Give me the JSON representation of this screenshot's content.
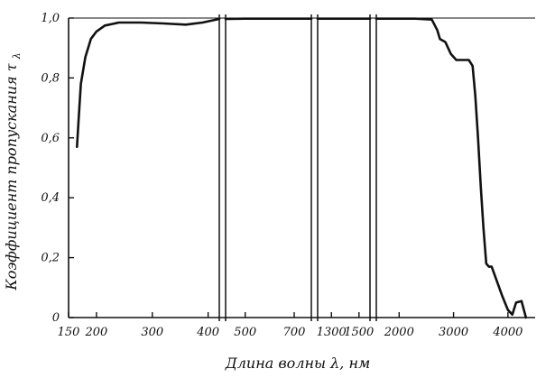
{
  "chart_data": {
    "type": "line",
    "title": "",
    "xlabel": "Длина волны λ, нм",
    "ylabel": "Коэффициент пропускания τ",
    "ylabel_subscript": "λ",
    "ylim": [
      0,
      1.0
    ],
    "y_ticks": [
      "0",
      "0,2",
      "0,4",
      "0,6",
      "0,8",
      "1,0"
    ],
    "y_tick_values": [
      0,
      0.2,
      0.4,
      0.6,
      0.8,
      1.0
    ],
    "x_axis_broken": true,
    "line_color": "#111111",
    "segments": [
      {
        "range": [
          150,
          420
        ],
        "ticks": [
          {
            "value": 150,
            "label": "150"
          },
          {
            "value": 200,
            "label": "200"
          },
          {
            "value": 300,
            "label": "300"
          },
          {
            "value": 400,
            "label": "400"
          }
        ],
        "points": [
          [
            165,
            0.57
          ],
          [
            168,
            0.66
          ],
          [
            172,
            0.78
          ],
          [
            180,
            0.87
          ],
          [
            190,
            0.93
          ],
          [
            200,
            0.955
          ],
          [
            215,
            0.975
          ],
          [
            240,
            0.985
          ],
          [
            280,
            0.985
          ],
          [
            320,
            0.982
          ],
          [
            360,
            0.978
          ],
          [
            390,
            0.985
          ],
          [
            420,
            0.997
          ]
        ]
      },
      {
        "range": [
          420,
          770
        ],
        "ticks": [
          {
            "value": 500,
            "label": "500"
          },
          {
            "value": 700,
            "label": "700"
          }
        ],
        "points": [
          [
            420,
            0.997
          ],
          [
            500,
            0.998
          ],
          [
            600,
            0.998
          ],
          [
            700,
            0.998
          ],
          [
            770,
            0.998
          ]
        ]
      },
      {
        "range": [
          1200,
          1580
        ],
        "ticks": [
          {
            "value": 1300,
            "label": "1300"
          },
          {
            "value": 1500,
            "label": "1500"
          }
        ],
        "points": [
          [
            1200,
            0.998
          ],
          [
            1300,
            0.998
          ],
          [
            1400,
            0.998
          ],
          [
            1500,
            0.998
          ],
          [
            1580,
            0.998
          ]
        ]
      },
      {
        "range": [
          1580,
          4500
        ],
        "ticks": [
          {
            "value": 2000,
            "label": "2000"
          },
          {
            "value": 3000,
            "label": "3000"
          },
          {
            "value": 4000,
            "label": "4000"
          }
        ],
        "points": [
          [
            1580,
            0.998
          ],
          [
            2000,
            0.998
          ],
          [
            2300,
            0.998
          ],
          [
            2600,
            0.995
          ],
          [
            2700,
            0.96
          ],
          [
            2750,
            0.93
          ],
          [
            2850,
            0.92
          ],
          [
            2950,
            0.88
          ],
          [
            3050,
            0.86
          ],
          [
            3150,
            0.86
          ],
          [
            3280,
            0.86
          ],
          [
            3350,
            0.84
          ],
          [
            3400,
            0.74
          ],
          [
            3450,
            0.6
          ],
          [
            3500,
            0.44
          ],
          [
            3550,
            0.3
          ],
          [
            3600,
            0.18
          ],
          [
            3650,
            0.17
          ],
          [
            3700,
            0.17
          ],
          [
            3800,
            0.12
          ],
          [
            3900,
            0.07
          ],
          [
            4000,
            0.025
          ],
          [
            4080,
            0.01
          ],
          [
            4150,
            0.05
          ],
          [
            4250,
            0.055
          ],
          [
            4330,
            0.0
          ]
        ]
      }
    ]
  }
}
